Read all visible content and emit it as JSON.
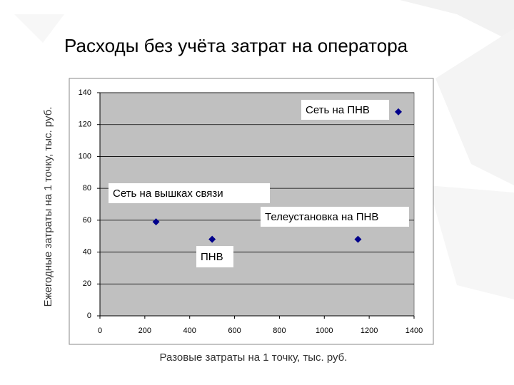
{
  "chart_data": {
    "type": "scatter",
    "title": "Расходы без учёта затрат на оператора",
    "x_label": "Разовые затраты на 1 точку, тыс. руб.",
    "y_label": "Ежегодные затраты на 1 точку, тыс. руб.",
    "series": [
      {
        "color": "#00008b",
        "x": [
          250,
          500,
          1150,
          1330
        ],
        "values": [
          59,
          48,
          48,
          128
        ]
      }
    ],
    "annotations": [
      "Сеть на вышках связи",
      "ПНВ",
      "Телеустановка на ПНВ",
      "Сеть на ПНВ"
    ],
    "xlim": [
      0,
      1400
    ],
    "xticks": [
      0,
      200,
      400,
      600,
      800,
      1000,
      1200,
      1400
    ],
    "ylim": [
      0,
      140
    ],
    "yticks": [
      0,
      20,
      40,
      60,
      80,
      100,
      120,
      140
    ],
    "grid": true,
    "plot_background": "#c0c0c0"
  }
}
